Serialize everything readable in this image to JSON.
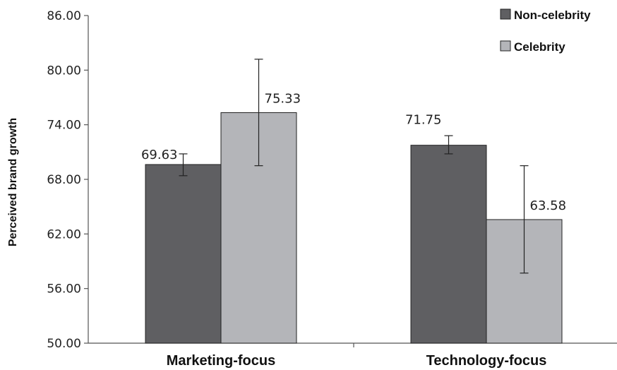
{
  "chart_data": {
    "type": "bar",
    "categories": [
      "Marketing-focus",
      "Technology-focus"
    ],
    "series": [
      {
        "name": "Non-celebrity",
        "color": "#5f5f62",
        "values": [
          69.63,
          71.75
        ],
        "value_labels": [
          "69.63",
          "71.75"
        ],
        "error": [
          [
            68.4,
            70.8
          ],
          [
            70.8,
            72.8
          ]
        ]
      },
      {
        "name": "Celebrity",
        "color": "#b4b5b9",
        "values": [
          75.33,
          63.58
        ],
        "value_labels": [
          "75.33",
          "63.58"
        ],
        "error": [
          [
            69.5,
            81.2
          ],
          [
            57.7,
            69.5
          ]
        ]
      }
    ],
    "title": "",
    "xlabel": "",
    "ylabel": "Perceived brand growth",
    "ylim": [
      50,
      86
    ],
    "yticks": [
      "50.00",
      "56.00",
      "62.00",
      "68.00",
      "74.00",
      "80.00",
      "86.00"
    ],
    "grid": false,
    "legend": "top-right"
  }
}
